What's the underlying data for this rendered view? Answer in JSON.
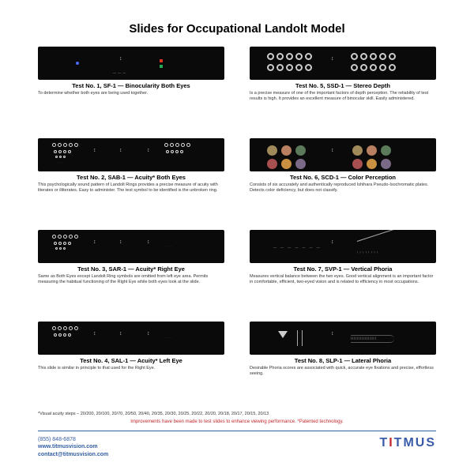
{
  "title": "Slides for Occupational Landolt Model",
  "slides": [
    {
      "num": "Test No. 1, SF-1 — Binocularity Both Eyes",
      "desc": "To determine whether both eyes are being used together."
    },
    {
      "num": "Test No. 5, SSD-1 — Stereo Depth",
      "desc": "Is a precise measure of one of the important factors of depth perception. The reliability of test results is high. It provides an excellent measure of binocular skill. Easily administered."
    },
    {
      "num": "Test No. 2, SAB-1 — Acuity* Both Eyes",
      "desc": "This psychologically sound pattern of Landolt Rings provides a precise measure of acuity with literates or illiterates. Easy to administer. The test symbol to be identified is the unbroken ring."
    },
    {
      "num": "Test No. 6, SCD-1 — Color Perception",
      "desc": "Consists of six accurately and authentically reproduced Ishihara Pseudo-Isochromatic plates. Detects color deficiency, but does not classify."
    },
    {
      "num": "Test No. 3, SAR-1 — Acuity* Right Eye",
      "desc": "Same as Both Eyes except Landolt Ring symbols are omitted from left eye area. Permits measuring the habitual functioning of the Right Eye while both eyes look at the slide."
    },
    {
      "num": "Test No. 7, SVP-1 — Vertical Phoria",
      "desc": "Measures vertical balance between the two eyes. Good vertical alignment is an important factor in comfortable, efficient, two-eyed vision and is related to efficiency in most occupations."
    },
    {
      "num": "Test No. 4, SAL-1 — Acuity* Left Eye",
      "desc": "This slide is similar in principle to that used for the Right Eye."
    },
    {
      "num": "Test No. 8, SLP-1 — Lateral Phoria",
      "desc": "Desirable Phoria scores are associated with quick, accurate eye fixations and precise, effortless seeing."
    }
  ],
  "footnote": "*Visual acuity steps – 20/200, 20/100, 20/70, 20/50, 20/40, 20/35, 20/30, 20/25, 20/22, 20/20, 20/18, 20/17, 20/15, 20/13",
  "improvement": "Improvements have been made to test slides to enhance viewing performance. *Patented technology.",
  "contact": {
    "phone": "(855) 848-6878",
    "url": "www.titmusvision.com",
    "email": "contact@titmusvision.com"
  },
  "logo": {
    "text_pre": "T",
    "text_i": "I",
    "text_post": "TMUS"
  },
  "colors": {
    "accentBlue": "#345fa3",
    "accentRed": "#c1272d",
    "slideBg": "#0a0a0a"
  },
  "colorPlates": [
    "#a08a5a",
    "#b88060",
    "#5a7a5a",
    "#a85050",
    "#c89040",
    "#7a6a88"
  ]
}
